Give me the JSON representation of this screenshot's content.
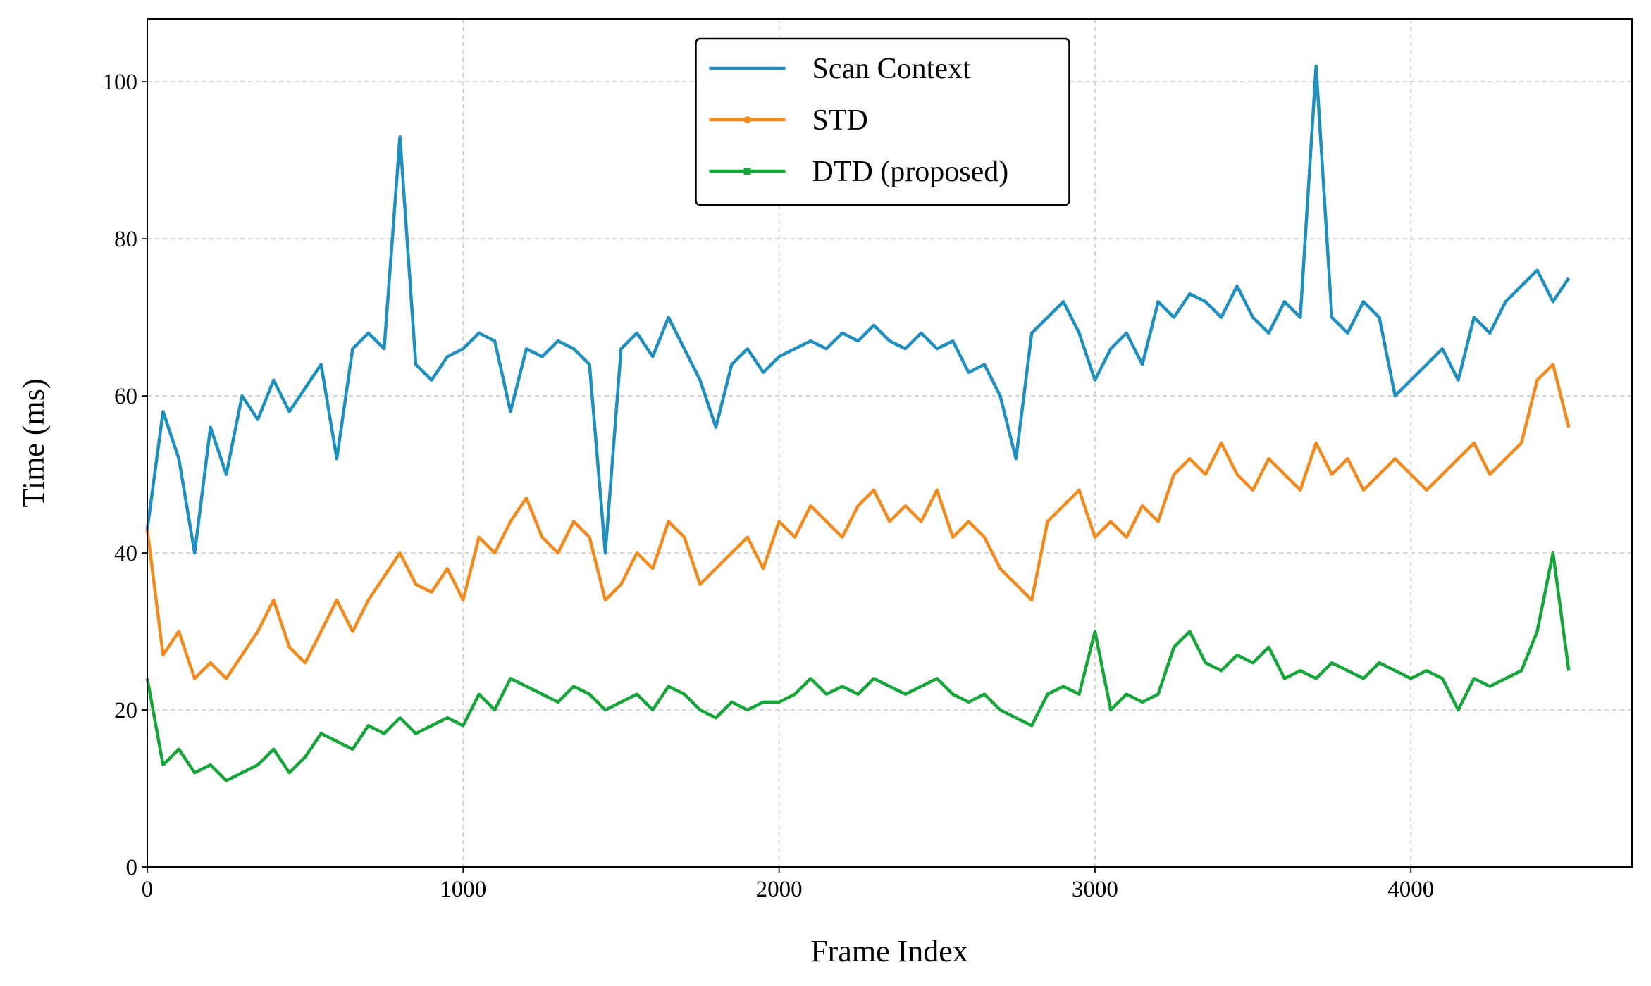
{
  "chart_data": {
    "type": "line",
    "xlabel": "Frame Index",
    "ylabel": "Time (ms)",
    "x": [
      0,
      50,
      100,
      150,
      200,
      250,
      300,
      350,
      400,
      450,
      500,
      550,
      600,
      650,
      700,
      750,
      800,
      850,
      900,
      950,
      1000,
      1050,
      1100,
      1150,
      1200,
      1250,
      1300,
      1350,
      1400,
      1450,
      1500,
      1550,
      1600,
      1650,
      1700,
      1750,
      1800,
      1850,
      1900,
      1950,
      2000,
      2050,
      2100,
      2150,
      2200,
      2250,
      2300,
      2350,
      2400,
      2450,
      2500,
      2550,
      2600,
      2650,
      2700,
      2750,
      2800,
      2850,
      2900,
      2950,
      3000,
      3050,
      3100,
      3150,
      3200,
      3250,
      3300,
      3350,
      3400,
      3450,
      3500,
      3550,
      3600,
      3650,
      3700,
      3750,
      3800,
      3850,
      3900,
      3950,
      4000,
      4050,
      4100,
      4150,
      4200,
      4250,
      4300,
      4350,
      4400,
      4450,
      4500
    ],
    "series": [
      {
        "name": "Scan Context",
        "color": "#1f8fc0",
        "marker": "none",
        "values": [
          43,
          58,
          52,
          40,
          56,
          50,
          60,
          57,
          62,
          58,
          61,
          64,
          52,
          66,
          68,
          66,
          93,
          64,
          62,
          65,
          66,
          68,
          67,
          58,
          66,
          65,
          67,
          66,
          64,
          40,
          66,
          68,
          65,
          70,
          66,
          62,
          56,
          64,
          66,
          63,
          65,
          66,
          67,
          66,
          68,
          67,
          69,
          67,
          66,
          68,
          66,
          67,
          63,
          64,
          60,
          52,
          68,
          70,
          72,
          68,
          62,
          66,
          68,
          64,
          72,
          70,
          73,
          72,
          70,
          74,
          70,
          68,
          72,
          70,
          102,
          70,
          68,
          72,
          70,
          60,
          62,
          64,
          66,
          62,
          70,
          68,
          72,
          74,
          76,
          72,
          75
        ]
      },
      {
        "name": "STD",
        "color": "#f28a1e",
        "marker": "circle",
        "values": [
          43,
          27,
          30,
          24,
          26,
          24,
          27,
          30,
          34,
          28,
          26,
          30,
          34,
          30,
          34,
          37,
          40,
          36,
          35,
          38,
          34,
          42,
          40,
          44,
          47,
          42,
          40,
          44,
          42,
          34,
          36,
          40,
          38,
          44,
          42,
          36,
          38,
          40,
          42,
          38,
          44,
          42,
          46,
          44,
          42,
          46,
          48,
          44,
          46,
          44,
          48,
          42,
          44,
          42,
          38,
          36,
          34,
          44,
          46,
          48,
          42,
          44,
          42,
          46,
          44,
          50,
          52,
          50,
          54,
          50,
          48,
          52,
          50,
          48,
          54,
          50,
          52,
          48,
          50,
          52,
          50,
          48,
          50,
          52,
          54,
          50,
          52,
          54,
          62,
          64,
          56
        ]
      },
      {
        "name": "DTD (proposed)",
        "color": "#15a538",
        "marker": "square",
        "values": [
          24,
          13,
          15,
          12,
          13,
          11,
          12,
          13,
          15,
          12,
          14,
          17,
          16,
          15,
          18,
          17,
          19,
          17,
          18,
          19,
          18,
          22,
          20,
          24,
          23,
          22,
          21,
          23,
          22,
          20,
          21,
          22,
          20,
          23,
          22,
          20,
          19,
          21,
          20,
          21,
          21,
          22,
          24,
          22,
          23,
          22,
          24,
          23,
          22,
          23,
          24,
          22,
          21,
          22,
          20,
          19,
          18,
          22,
          23,
          22,
          30,
          20,
          22,
          21,
          22,
          28,
          30,
          26,
          25,
          27,
          26,
          28,
          24,
          25,
          24,
          26,
          25,
          24,
          26,
          25,
          24,
          25,
          24,
          20,
          24,
          23,
          24,
          25,
          30,
          40,
          25
        ]
      }
    ],
    "xlim": [
      0,
      4700
    ],
    "ylim": [
      0,
      108
    ],
    "xticks": [
      0,
      1000,
      2000,
      3000,
      4000
    ],
    "yticks": [
      0,
      20,
      40,
      60,
      80,
      100
    ],
    "grid": true,
    "legend": "upper center"
  }
}
